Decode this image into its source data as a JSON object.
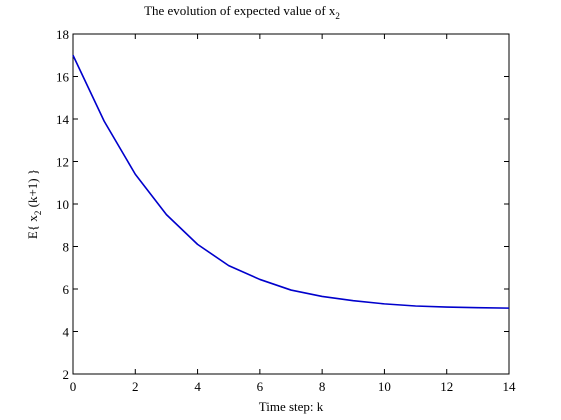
{
  "chart_data": {
    "type": "line",
    "title": "The evolution of expected value of x",
    "title_subscript": "2",
    "xlabel": "Time step: k",
    "ylabel": {
      "prefix": "E{ x",
      "subscript": "2",
      "suffix": " (k+1) }"
    },
    "xlim": [
      0,
      14
    ],
    "ylim": [
      2,
      18
    ],
    "xticks": [
      0,
      2,
      4,
      6,
      8,
      10,
      12,
      14
    ],
    "yticks": [
      2,
      4,
      6,
      8,
      10,
      12,
      14,
      16,
      18
    ],
    "grid": false,
    "line_color": "#0000cc",
    "series": [
      {
        "x": [
          0,
          1,
          2,
          3,
          4,
          5,
          6,
          7,
          8,
          9,
          10,
          11,
          12,
          13,
          14
        ],
        "values": [
          17.0,
          13.9,
          11.4,
          9.5,
          8.1,
          7.1,
          6.45,
          5.95,
          5.65,
          5.45,
          5.3,
          5.2,
          5.15,
          5.12,
          5.1
        ]
      }
    ]
  }
}
